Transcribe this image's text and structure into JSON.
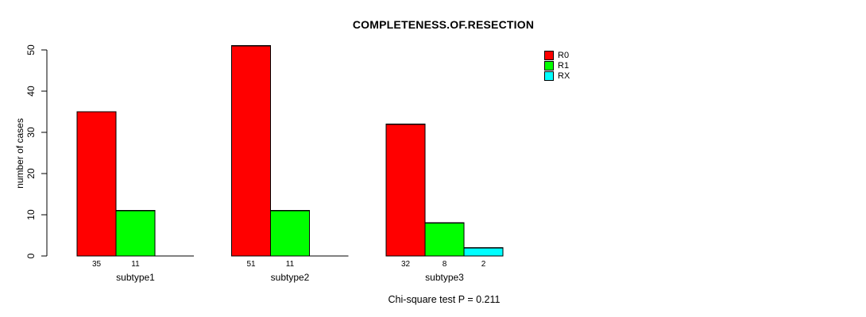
{
  "chart_data": {
    "type": "bar",
    "title": "COMPLETENESS.OF.RESECTION",
    "ylabel": "number of cases",
    "xlabel": "",
    "ylim": [
      0,
      50
    ],
    "yticks": [
      0,
      10,
      20,
      30,
      40,
      50
    ],
    "grid": false,
    "legend_position": "top-right",
    "categories": [
      "subtype1",
      "subtype2",
      "subtype3"
    ],
    "series": [
      {
        "name": "R0",
        "color": "#ff0000",
        "values": [
          35,
          51,
          32
        ]
      },
      {
        "name": "R1",
        "color": "#00ff00",
        "values": [
          11,
          11,
          8
        ]
      },
      {
        "name": "RX",
        "color": "#00ffff",
        "values": [
          null,
          null,
          2
        ]
      }
    ],
    "bar_border_color": "#000000",
    "axis_color": "#000000",
    "annotation": "Chi-square test P = 0.211"
  }
}
